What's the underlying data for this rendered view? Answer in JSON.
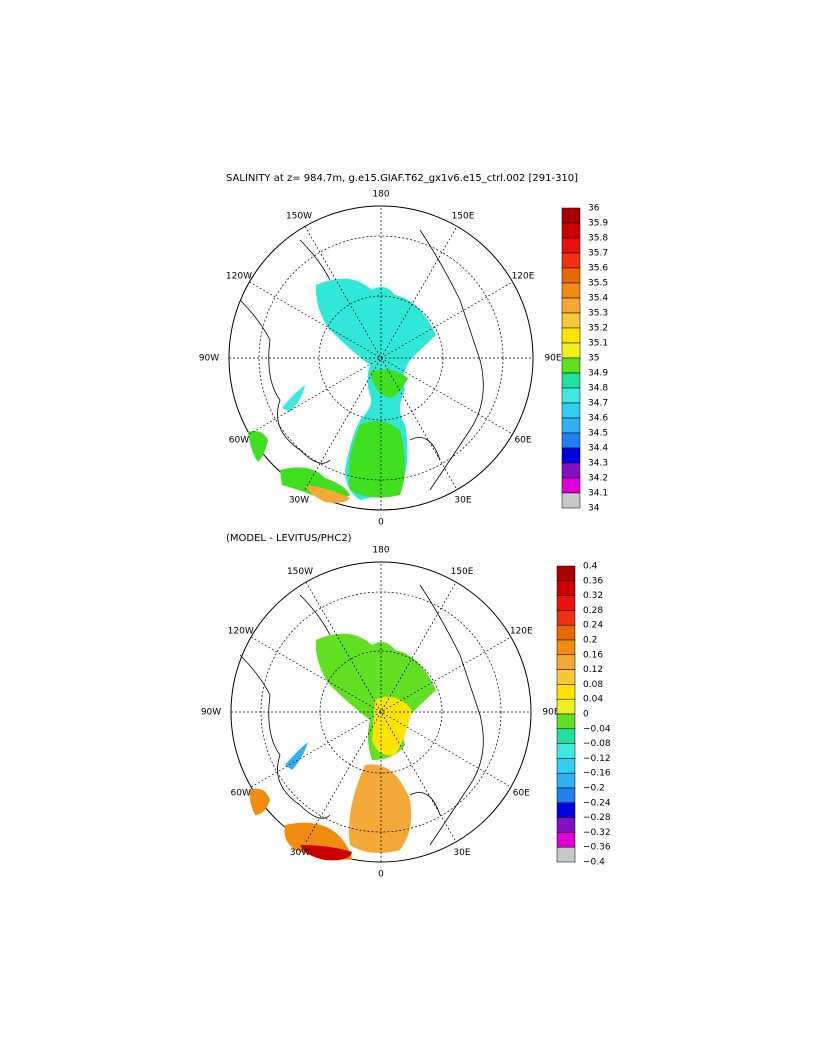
{
  "panels": [
    {
      "title": "SALINITY at z= 984.7m, g.e15.GIAF.T62_gx1v6.e15_ctrl.002 [291-310]",
      "lon_labels": [
        "180",
        "150W",
        "150E",
        "120W",
        "120E",
        "90W",
        "90E",
        "60W",
        "60E",
        "30W",
        "30E",
        "0"
      ],
      "colorbar": [
        "36",
        "35.9",
        "35.8",
        "35.7",
        "35.6",
        "35.5",
        "35.4",
        "35.3",
        "35.2",
        "35.1",
        "35",
        "34.9",
        "34.8",
        "34.7",
        "34.6",
        "34.5",
        "34.4",
        "34.3",
        "34.2",
        "34.1",
        "34"
      ]
    },
    {
      "title": "(MODEL - LEVITUS/PHC2)",
      "lon_labels": [
        "180",
        "150W",
        "150E",
        "120W",
        "120E",
        "90W",
        "90E",
        "60W",
        "60E",
        "30W",
        "30E",
        "0"
      ],
      "colorbar": [
        "0.4",
        "0.36",
        "0.32",
        "0.28",
        "0.24",
        "0.2",
        "0.16",
        "0.12",
        "0.08",
        "0.04",
        "0",
        "−0.04",
        "−0.08",
        "−0.12",
        "−0.16",
        "−0.2",
        "−0.24",
        "−0.28",
        "−0.32",
        "−0.36",
        "−0.4"
      ]
    }
  ],
  "palette": [
    "#a80000",
    "#cc0000",
    "#e81010",
    "#f03010",
    "#e86800",
    "#f08c10",
    "#f4a838",
    "#f8c838",
    "#ffe400",
    "#f0f020",
    "#60e020",
    "#20e0a0",
    "#40e8e0",
    "#30d0f0",
    "#30b0f0",
    "#2080f0",
    "#0000e0",
    "#8010c0",
    "#e000d8",
    "#c8c8c8",
    "#707070"
  ]
}
